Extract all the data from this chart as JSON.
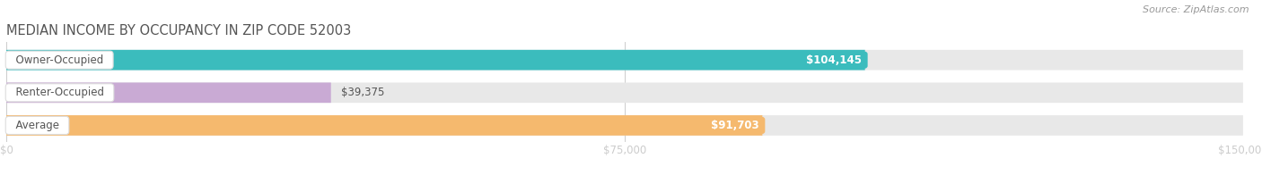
{
  "title": "MEDIAN INCOME BY OCCUPANCY IN ZIP CODE 52003",
  "source": "Source: ZipAtlas.com",
  "categories": [
    "Owner-Occupied",
    "Renter-Occupied",
    "Average"
  ],
  "values": [
    104145,
    39375,
    91703
  ],
  "bar_colors": [
    "#3bbcbd",
    "#c9aad4",
    "#f5b96e"
  ],
  "bar_bg_color": "#e8e8e8",
  "label_texts": [
    "$104,145",
    "$39,375",
    "$91,703"
  ],
  "label_white": [
    true,
    false,
    true
  ],
  "x_ticks": [
    0,
    75000,
    150000
  ],
  "x_tick_labels": [
    "$0",
    "$75,000",
    "$150,000"
  ],
  "xlim": [
    0,
    150000
  ],
  "title_fontsize": 10.5,
  "title_color": "#555555",
  "source_fontsize": 8,
  "source_color": "#999999",
  "label_fontsize": 8.5,
  "tick_fontsize": 8.5,
  "category_fontsize": 8.5,
  "category_color": "#555555",
  "bg_color": "#ffffff",
  "bar_height": 0.62,
  "bar_gap": 0.12
}
